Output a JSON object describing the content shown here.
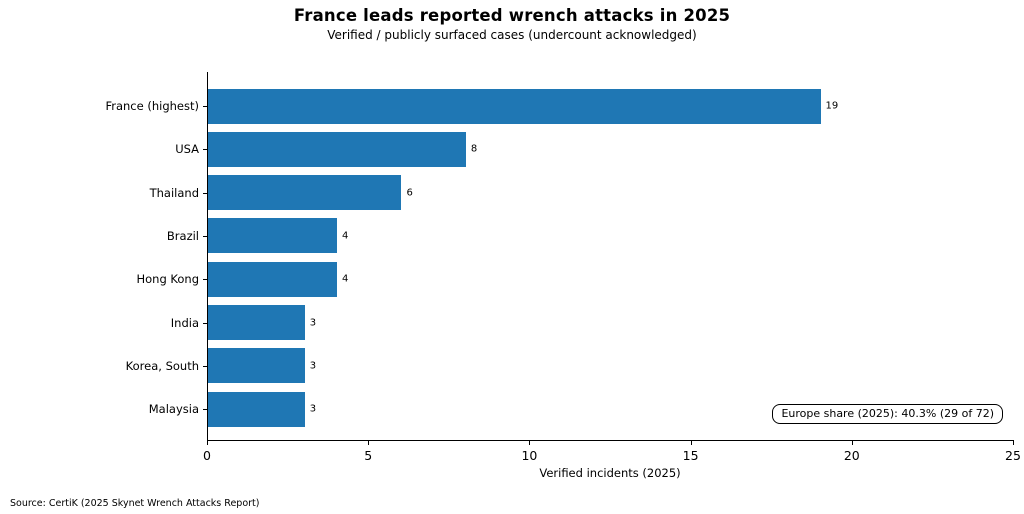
{
  "chart_data": {
    "type": "bar",
    "orientation": "horizontal",
    "title": "France leads reported wrench attacks in 2025",
    "subtitle": "Verified / publicly surfaced cases (undercount acknowledged)",
    "categories": [
      "France (highest)",
      "USA",
      "Thailand",
      "Brazil",
      "Hong Kong",
      "India",
      "Korea, South",
      "Malaysia"
    ],
    "values": [
      19,
      8,
      6,
      4,
      4,
      3,
      3,
      3
    ],
    "xlabel": "Verified incidents (2025)",
    "xlim": [
      0,
      25
    ],
    "xticks": [
      0,
      5,
      10,
      15,
      20,
      25
    ],
    "bar_color": "#1f77b4",
    "grid": false,
    "legend": "none",
    "annotation": "Europe share (2025): 40.3% (29 of 72)"
  },
  "source_note": "Source: CertiK (2025 Skynet Wrench Attacks Report)"
}
